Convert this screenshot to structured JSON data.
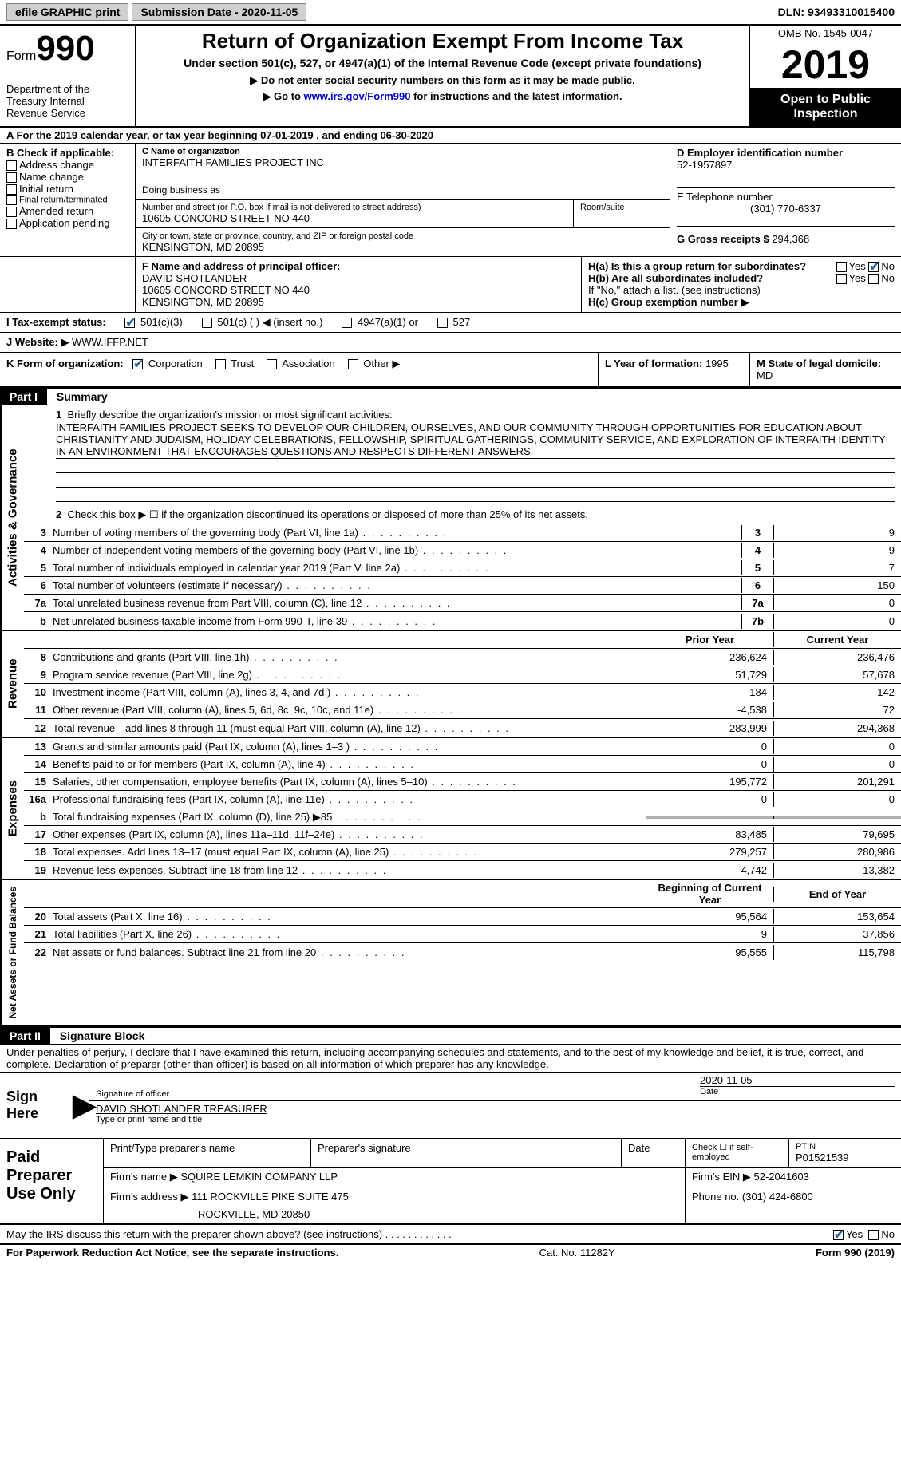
{
  "topbar": {
    "efile": "efile GRAPHIC print",
    "submission_label": "Submission Date - ",
    "submission_date": "2020-11-05",
    "dln_label": "DLN: ",
    "dln": "93493310015400"
  },
  "header": {
    "form_word": "Form",
    "form_num": "990",
    "dept": "Department of the Treasury\nInternal Revenue Service",
    "title": "Return of Organization Exempt From Income Tax",
    "subtitle": "Under section 501(c), 527, or 4947(a)(1) of the Internal Revenue Code (except private foundations)",
    "note1": "▶ Do not enter social security numbers on this form as it may be made public.",
    "note2_pre": "▶ Go to ",
    "note2_link": "www.irs.gov/Form990",
    "note2_post": " for instructions and the latest information.",
    "omb": "OMB No. 1545-0047",
    "year": "2019",
    "inspection": "Open to Public Inspection"
  },
  "row_a": {
    "text_pre": "For the 2019 calendar year, or tax year beginning ",
    "begin": "07-01-2019",
    "mid": " , and ending ",
    "end": "06-30-2020"
  },
  "section_b": {
    "b_label": "B Check if applicable:",
    "b_items": [
      "Address change",
      "Name change",
      "Initial return",
      "Final return/terminated",
      "Amended return",
      "Application pending"
    ],
    "c_label": "C Name of organization",
    "c_name": "INTERFAITH FAMILIES PROJECT INC",
    "dba": "Doing business as",
    "addr_label": "Number and street (or P.O. box if mail is not delivered to street address)",
    "room": "Room/suite",
    "addr": "10605 CONCORD STREET NO 440",
    "city_label": "City or town, state or province, country, and ZIP or foreign postal code",
    "city": "KENSINGTON, MD  20895",
    "d_label": "D Employer identification number",
    "ein": "52-1957897",
    "e_label": "E Telephone number",
    "phone": "(301) 770-6337",
    "g_label": "G Gross receipts $ ",
    "g_val": "294,368"
  },
  "section_fh": {
    "f_label": "F Name and address of principal officer:",
    "f_name": "DAVID SHOTLANDER",
    "f_addr1": "10605 CONCORD STREET NO 440",
    "f_addr2": "KENSINGTON, MD  20895",
    "ha_label": "H(a)  Is this a group return for subordinates?",
    "ha_no_checked": true,
    "hb_label": "H(b)  Are all subordinates included?",
    "hb_note": "If \"No,\" attach a list. (see instructions)",
    "hc_label": "H(c)  Group exemption number ▶"
  },
  "row_i": {
    "label": "I  Tax-exempt status:",
    "opts": [
      "501(c)(3)",
      "501(c) (  ) ◀ (insert no.)",
      "4947(a)(1) or",
      "527"
    ],
    "checked_idx": 0
  },
  "row_j": {
    "label": "J  Website: ▶ ",
    "val": "WWW.IFFP.NET"
  },
  "row_k": {
    "label": "K Form of organization:",
    "opts": [
      "Corporation",
      "Trust",
      "Association",
      "Other ▶"
    ],
    "checked_idx": 0
  },
  "row_l": {
    "label": "L Year of formation: ",
    "val": "1995"
  },
  "row_m": {
    "label": "M State of legal domicile: ",
    "val": "MD"
  },
  "part1": {
    "header": "Part I",
    "title": "Summary",
    "q1": "Briefly describe the organization's mission or most significant activities:",
    "mission": "INTERFAITH FAMILIES PROJECT SEEKS TO DEVELOP OUR CHILDREN, OURSELVES, AND OUR COMMUNITY THROUGH OPPORTUNITIES FOR EDUCATION ABOUT CHRISTIANITY AND JUDAISM, HOLIDAY CELEBRATIONS, FELLOWSHIP, SPIRITUAL GATHERINGS, COMMUNITY SERVICE, AND EXPLORATION OF INTERFAITH IDENTITY IN AN ENVIRONMENT THAT ENCOURAGES QUESTIONS AND RESPECTS DIFFERENT ANSWERS.",
    "q2": "Check this box ▶ ☐ if the organization discontinued its operations or disposed of more than 25% of its net assets.",
    "vert1": "Activities & Governance",
    "vert2": "Revenue",
    "vert3": "Expenses",
    "vert4": "Net Assets or Fund Balances",
    "gov_rows": [
      {
        "n": "3",
        "d": "Number of voting members of the governing body (Part VI, line 1a)",
        "k": "3",
        "v": "9"
      },
      {
        "n": "4",
        "d": "Number of independent voting members of the governing body (Part VI, line 1b)",
        "k": "4",
        "v": "9"
      },
      {
        "n": "5",
        "d": "Total number of individuals employed in calendar year 2019 (Part V, line 2a)",
        "k": "5",
        "v": "7"
      },
      {
        "n": "6",
        "d": "Total number of volunteers (estimate if necessary)",
        "k": "6",
        "v": "150"
      },
      {
        "n": "7a",
        "d": "Total unrelated business revenue from Part VIII, column (C), line 12",
        "k": "7a",
        "v": "0"
      },
      {
        "n": "b",
        "d": "Net unrelated business taxable income from Form 990-T, line 39",
        "k": "7b",
        "v": "0"
      }
    ],
    "col_prior": "Prior Year",
    "col_current": "Current Year",
    "rev_rows": [
      {
        "n": "8",
        "d": "Contributions and grants (Part VIII, line 1h)",
        "p": "236,624",
        "c": "236,476"
      },
      {
        "n": "9",
        "d": "Program service revenue (Part VIII, line 2g)",
        "p": "51,729",
        "c": "57,678"
      },
      {
        "n": "10",
        "d": "Investment income (Part VIII, column (A), lines 3, 4, and 7d )",
        "p": "184",
        "c": "142"
      },
      {
        "n": "11",
        "d": "Other revenue (Part VIII, column (A), lines 5, 6d, 8c, 9c, 10c, and 11e)",
        "p": "-4,538",
        "c": "72"
      },
      {
        "n": "12",
        "d": "Total revenue—add lines 8 through 11 (must equal Part VIII, column (A), line 12)",
        "p": "283,999",
        "c": "294,368"
      }
    ],
    "exp_rows": [
      {
        "n": "13",
        "d": "Grants and similar amounts paid (Part IX, column (A), lines 1–3 )",
        "p": "0",
        "c": "0"
      },
      {
        "n": "14",
        "d": "Benefits paid to or for members (Part IX, column (A), line 4)",
        "p": "0",
        "c": "0"
      },
      {
        "n": "15",
        "d": "Salaries, other compensation, employee benefits (Part IX, column (A), lines 5–10)",
        "p": "195,772",
        "c": "201,291"
      },
      {
        "n": "16a",
        "d": "Professional fundraising fees (Part IX, column (A), line 11e)",
        "p": "0",
        "c": "0"
      },
      {
        "n": "b",
        "d": "Total fundraising expenses (Part IX, column (D), line 25) ▶85",
        "p": "",
        "c": "",
        "shaded": true
      },
      {
        "n": "17",
        "d": "Other expenses (Part IX, column (A), lines 11a–11d, 11f–24e)",
        "p": "83,485",
        "c": "79,695"
      },
      {
        "n": "18",
        "d": "Total expenses. Add lines 13–17 (must equal Part IX, column (A), line 25)",
        "p": "279,257",
        "c": "280,986"
      },
      {
        "n": "19",
        "d": "Revenue less expenses. Subtract line 18 from line 12",
        "p": "4,742",
        "c": "13,382"
      }
    ],
    "col_begin": "Beginning of Current Year",
    "col_end": "End of Year",
    "net_rows": [
      {
        "n": "20",
        "d": "Total assets (Part X, line 16)",
        "p": "95,564",
        "c": "153,654"
      },
      {
        "n": "21",
        "d": "Total liabilities (Part X, line 26)",
        "p": "9",
        "c": "37,856"
      },
      {
        "n": "22",
        "d": "Net assets or fund balances. Subtract line 21 from line 20",
        "p": "95,555",
        "c": "115,798"
      }
    ]
  },
  "part2": {
    "header": "Part II",
    "title": "Signature Block",
    "decl": "Under penalties of perjury, I declare that I have examined this return, including accompanying schedules and statements, and to the best of my knowledge and belief, it is true, correct, and complete. Declaration of preparer (other than officer) is based on all information of which preparer has any knowledge.",
    "sign_here": "Sign Here",
    "sig_officer": "Signature of officer",
    "sig_date_label": "Date",
    "sig_date": "2020-11-05",
    "officer_name": "DAVID SHOTLANDER TREASURER",
    "officer_sub": "Type or print name and title",
    "paid_label": "Paid Preparer Use Only",
    "prep_name_label": "Print/Type preparer's name",
    "prep_sig_label": "Preparer's signature",
    "prep_date_label": "Date",
    "prep_check_label": "Check ☐ if self-employed",
    "ptin_label": "PTIN",
    "ptin": "P01521539",
    "firm_name_label": "Firm's name    ▶ ",
    "firm_name": "SQUIRE LEMKIN COMPANY LLP",
    "firm_ein_label": "Firm's EIN ▶ ",
    "firm_ein": "52-2041603",
    "firm_addr_label": "Firm's address ▶ ",
    "firm_addr": "111 ROCKVILLE PIKE SUITE 475",
    "firm_city": "ROCKVILLE, MD  20850",
    "firm_phone_label": "Phone no. ",
    "firm_phone": "(301) 424-6800",
    "irs_q": "May the IRS discuss this return with the preparer shown above? (see instructions)",
    "irs_yes_checked": true
  },
  "footer": {
    "left": "For Paperwork Reduction Act Notice, see the separate instructions.",
    "center": "Cat. No. 11282Y",
    "right": "Form 990 (2019)"
  }
}
